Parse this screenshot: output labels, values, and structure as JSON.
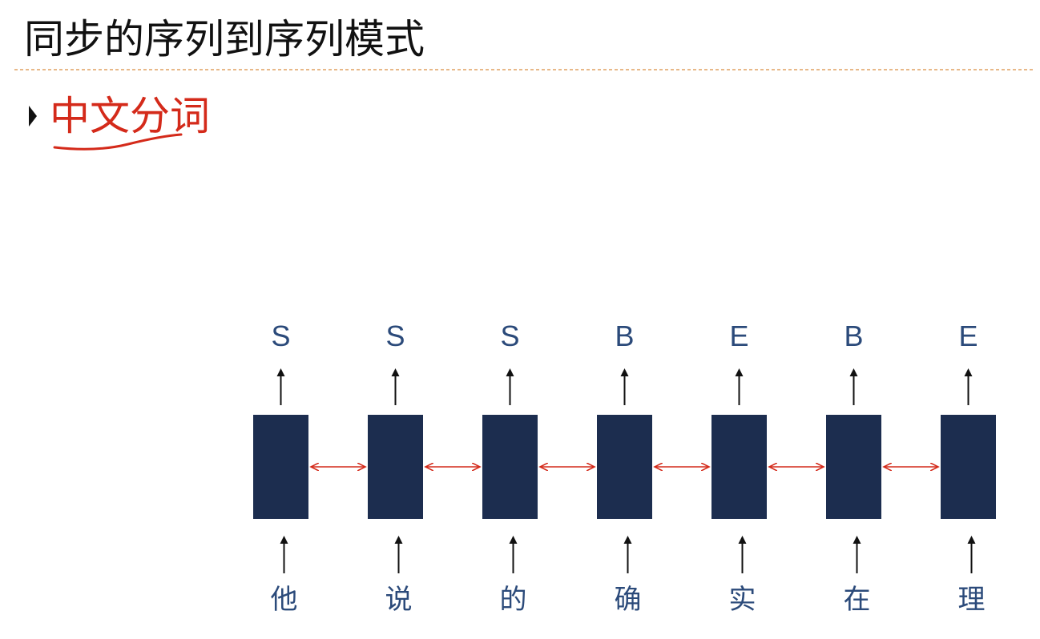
{
  "header": {
    "title": "同步的序列到序列模式"
  },
  "bullet": {
    "text": "中文分词"
  },
  "diagram": {
    "outputs": [
      "S",
      "S",
      "S",
      "B",
      "E",
      "B",
      "E"
    ],
    "inputs": [
      "他",
      "说",
      "的",
      "确",
      "实",
      "在",
      "理"
    ]
  }
}
